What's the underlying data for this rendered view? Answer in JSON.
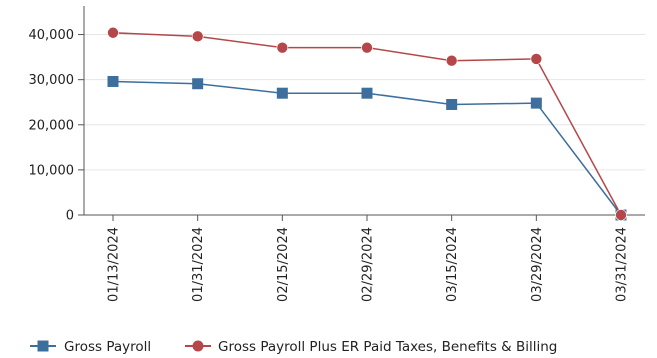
{
  "chart_data": {
    "type": "line",
    "categories": [
      "01/13/2024",
      "01/31/2024",
      "02/15/2024",
      "02/29/2024",
      "03/15/2024",
      "03/29/2024",
      "03/31/2024"
    ],
    "ylim": [
      0,
      45000
    ],
    "yticks": [
      0,
      10000,
      20000,
      30000,
      40000
    ],
    "ytick_labels": [
      "0",
      "10,000",
      "20,000",
      "30,000",
      "40,000"
    ],
    "grid": true,
    "legend_position": "bottom",
    "series": [
      {
        "name": "Gross Payroll",
        "color": "#3d6e9c",
        "marker": "square",
        "values": [
          29600,
          29100,
          27000,
          27000,
          24500,
          24800,
          0
        ]
      },
      {
        "name": "Gross Payroll Plus ER Paid Taxes, Benefits & Billing",
        "color": "#b5474a",
        "marker": "circle",
        "values": [
          40400,
          39600,
          37100,
          37100,
          34200,
          34600,
          0
        ]
      }
    ]
  }
}
